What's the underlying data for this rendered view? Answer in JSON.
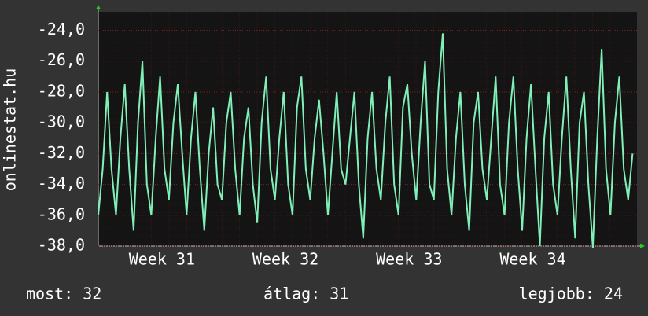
{
  "chart_data": {
    "type": "line",
    "y_label": "onlinestat.hu",
    "x": [
      0,
      0.25,
      0.5,
      0.75,
      1,
      1.25,
      1.5,
      1.75,
      2,
      2.25,
      2.5,
      2.75,
      3,
      3.25,
      3.5,
      3.75,
      4,
      4.25,
      4.5,
      4.75,
      5,
      5.25,
      5.5,
      5.75,
      6,
      6.25,
      6.5,
      6.75,
      7,
      7.25,
      7.5,
      7.75,
      8,
      8.25,
      8.5,
      8.75,
      9,
      9.25,
      9.5,
      9.75,
      10,
      10.25,
      10.5,
      10.75,
      11,
      11.25,
      11.5,
      11.75,
      12,
      12.25,
      12.5,
      12.75,
      13,
      13.25,
      13.5,
      13.75,
      14,
      14.25,
      14.5,
      14.75,
      15,
      15.25,
      15.5,
      15.75,
      16,
      16.25,
      16.5,
      16.75,
      17,
      17.25,
      17.5,
      17.75,
      18,
      18.25,
      18.5,
      18.75,
      19,
      19.25,
      19.5,
      19.75,
      20,
      20.25,
      20.5,
      20.75,
      21,
      21.25,
      21.5,
      21.75,
      22,
      22.25,
      22.5,
      22.75,
      23,
      23.25,
      23.5,
      23.75,
      24,
      24.25,
      24.5,
      24.75,
      25,
      25.25,
      25.5,
      25.75,
      26,
      26.25,
      26.5,
      26.75,
      27,
      27.25,
      27.5,
      27.75,
      28,
      28.25,
      28.5,
      28.75,
      29,
      29.25,
      29.5,
      29.75,
      30,
      30.25
    ],
    "series": [
      {
        "name": "onlinestat.hu",
        "color": "#80f0b8",
        "values": [
          -36,
          -33,
          -28,
          -33,
          -36,
          -31,
          -27.5,
          -33,
          -37,
          -30,
          -26,
          -34,
          -36,
          -31,
          -27,
          -33,
          -35,
          -30,
          -27.5,
          -32,
          -36,
          -31,
          -28,
          -33,
          -37,
          -32,
          -29,
          -34,
          -35,
          -30,
          -28,
          -33,
          -36,
          -31,
          -29,
          -34,
          -36.5,
          -30,
          -27,
          -33,
          -35,
          -31,
          -28,
          -34,
          -36,
          -29,
          -27,
          -33,
          -35,
          -31,
          -28.5,
          -32,
          -36,
          -32,
          -28,
          -33,
          -34,
          -31,
          -28,
          -34,
          -37.5,
          -31,
          -28,
          -33,
          -35,
          -30,
          -27,
          -34,
          -36,
          -29,
          -27.5,
          -32,
          -35,
          -30,
          -26,
          -34,
          -35,
          -28,
          -24.2,
          -33,
          -36,
          -31,
          -28,
          -34,
          -37,
          -30,
          -28,
          -33,
          -35,
          -31,
          -27,
          -34,
          -36,
          -30,
          -27,
          -33,
          -37,
          -31,
          -27.5,
          -33,
          -38,
          -31,
          -28,
          -34,
          -36,
          -31,
          -27,
          -33,
          -37.5,
          -30,
          -28,
          -34,
          -38.1,
          -31,
          -25.2,
          -33,
          -36,
          -30,
          -27,
          -33,
          -35,
          -32
        ]
      }
    ],
    "xlim": [
      0,
      30.5
    ],
    "xticks": [
      {
        "value": 3.6,
        "label": "Week 31"
      },
      {
        "value": 10.6,
        "label": "Week 32"
      },
      {
        "value": 17.6,
        "label": "Week 33"
      },
      {
        "value": 24.6,
        "label": "Week 34"
      }
    ],
    "ylim": [
      -38,
      -22.8
    ],
    "yticks": [
      {
        "value": -38,
        "label": "-38,0"
      },
      {
        "value": -36,
        "label": "-36,0"
      },
      {
        "value": -34,
        "label": "-34,0"
      },
      {
        "value": -32,
        "label": "-32,0"
      },
      {
        "value": -30,
        "label": "-30,0"
      },
      {
        "value": -28,
        "label": "-28,0"
      },
      {
        "value": -26,
        "label": "-26,0"
      },
      {
        "value": -24,
        "label": "-24,0"
      }
    ],
    "grid": true,
    "footer": [
      "most: 32",
      "átlag: 31",
      "legjobb: 24"
    ]
  }
}
